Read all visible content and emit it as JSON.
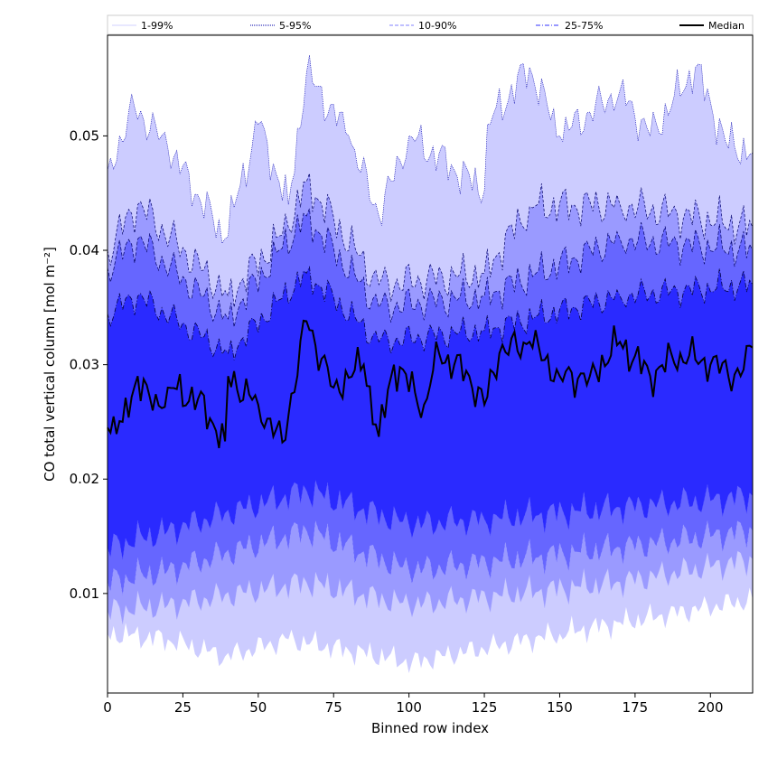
{
  "chart_data": {
    "type": "area",
    "xlabel": "Binned row index",
    "ylabel": "CO total vertical column [mol m⁻²]",
    "xlim": [
      0,
      214
    ],
    "ylim": [
      0.0013,
      0.0588
    ],
    "xticks": [
      0,
      25,
      50,
      75,
      100,
      125,
      150,
      175,
      200
    ],
    "yticks": [
      0.01,
      0.02,
      0.03,
      0.04,
      0.05
    ],
    "ytick_labels": [
      "0.01",
      "0.02",
      "0.03",
      "0.04",
      "0.05"
    ],
    "grid": false,
    "legend_position": "top",
    "legend": [
      {
        "label": "1-99%",
        "color": "#d0d0ff",
        "style": "solid"
      },
      {
        "label": "5-95%",
        "color": "#0000aa",
        "style": "dotted"
      },
      {
        "label": "10-90%",
        "color": "#8080ff",
        "style": "dashed"
      },
      {
        "label": "25-75%",
        "color": "#3030ff",
        "style": "dashdot"
      },
      {
        "label": "Median",
        "color": "#000000",
        "style": "solid"
      }
    ],
    "fill_colors": {
      "p1_99": "#ccccff",
      "p5_95": "#9a9aff",
      "p10_90": "#6666ff",
      "p25_75": "#2a2aff"
    },
    "n_points": 215,
    "series": [
      {
        "name": "Median",
        "x_start": 0,
        "x_step": 1,
        "values_approx_keypoints": [
          [
            0,
            0.0245
          ],
          [
            5,
            0.025
          ],
          [
            10,
            0.029
          ],
          [
            15,
            0.026
          ],
          [
            20,
            0.028
          ],
          [
            30,
            0.027
          ],
          [
            39,
            0.0233
          ],
          [
            40,
            0.029
          ],
          [
            50,
            0.0265
          ],
          [
            58,
            0.0232
          ],
          [
            66,
            0.0338
          ],
          [
            75,
            0.028
          ],
          [
            85,
            0.03
          ],
          [
            90,
            0.0237
          ],
          [
            95,
            0.03
          ],
          [
            105,
            0.0265
          ],
          [
            110,
            0.031
          ],
          [
            120,
            0.029
          ],
          [
            125,
            0.0265
          ],
          [
            130,
            0.031
          ],
          [
            140,
            0.032
          ],
          [
            150,
            0.029
          ],
          [
            160,
            0.029
          ],
          [
            170,
            0.032
          ],
          [
            180,
            0.029
          ],
          [
            190,
            0.031
          ],
          [
            200,
            0.03
          ],
          [
            210,
            0.029
          ],
          [
            214,
            0.0315
          ]
        ]
      },
      {
        "name": "99%",
        "values_approx_keypoints": [
          [
            0,
            0.047
          ],
          [
            9,
            0.0525
          ],
          [
            20,
            0.049
          ],
          [
            39,
            0.041
          ],
          [
            50,
            0.051
          ],
          [
            60,
            0.044
          ],
          [
            66,
            0.0555
          ],
          [
            80,
            0.05
          ],
          [
            90,
            0.043
          ],
          [
            100,
            0.05
          ],
          [
            125,
            0.0452
          ],
          [
            126,
            0.051
          ],
          [
            140,
            0.056
          ],
          [
            150,
            0.05
          ],
          [
            170,
            0.054
          ],
          [
            180,
            0.05
          ],
          [
            195,
            0.056
          ],
          [
            205,
            0.0495
          ],
          [
            214,
            0.0485
          ]
        ]
      },
      {
        "name": "95%",
        "values_approx_keypoints": [
          [
            0,
            0.04
          ],
          [
            10,
            0.044
          ],
          [
            40,
            0.036
          ],
          [
            60,
            0.042
          ],
          [
            66,
            0.046
          ],
          [
            90,
            0.037
          ],
          [
            125,
            0.038
          ],
          [
            140,
            0.0438
          ],
          [
            170,
            0.044
          ],
          [
            214,
            0.042
          ]
        ]
      },
      {
        "name": "90%",
        "values_approx_keypoints": [
          [
            0,
            0.0385
          ],
          [
            10,
            0.041
          ],
          [
            40,
            0.034
          ],
          [
            66,
            0.043
          ],
          [
            90,
            0.035
          ],
          [
            125,
            0.036
          ],
          [
            170,
            0.041
          ],
          [
            214,
            0.04
          ]
        ]
      },
      {
        "name": "75%",
        "values_approx_keypoints": [
          [
            0,
            0.0345
          ],
          [
            10,
            0.036
          ],
          [
            40,
            0.031
          ],
          [
            66,
            0.038
          ],
          [
            90,
            0.032
          ],
          [
            125,
            0.033
          ],
          [
            170,
            0.036
          ],
          [
            214,
            0.037
          ]
        ]
      },
      {
        "name": "25%",
        "values_approx_keypoints": [
          [
            0,
            0.014
          ],
          [
            20,
            0.0155
          ],
          [
            66,
            0.019
          ],
          [
            100,
            0.016
          ],
          [
            125,
            0.0165
          ],
          [
            170,
            0.0175
          ],
          [
            214,
            0.0185
          ]
        ]
      },
      {
        "name": "10%",
        "values_approx_keypoints": [
          [
            0,
            0.011
          ],
          [
            20,
            0.012
          ],
          [
            66,
            0.0155
          ],
          [
            100,
            0.012
          ],
          [
            170,
            0.014
          ],
          [
            214,
            0.0155
          ]
        ]
      },
      {
        "name": "5%",
        "values_approx_keypoints": [
          [
            0,
            0.0085
          ],
          [
            20,
            0.009
          ],
          [
            66,
            0.011
          ],
          [
            100,
            0.009
          ],
          [
            170,
            0.011
          ],
          [
            214,
            0.013
          ]
        ]
      },
      {
        "name": "1%",
        "values_approx_keypoints": [
          [
            0,
            0.0065
          ],
          [
            20,
            0.006
          ],
          [
            39,
            0.0045
          ],
          [
            60,
            0.006
          ],
          [
            101,
            0.004
          ],
          [
            150,
            0.0065
          ],
          [
            214,
            0.0095
          ]
        ]
      }
    ]
  }
}
